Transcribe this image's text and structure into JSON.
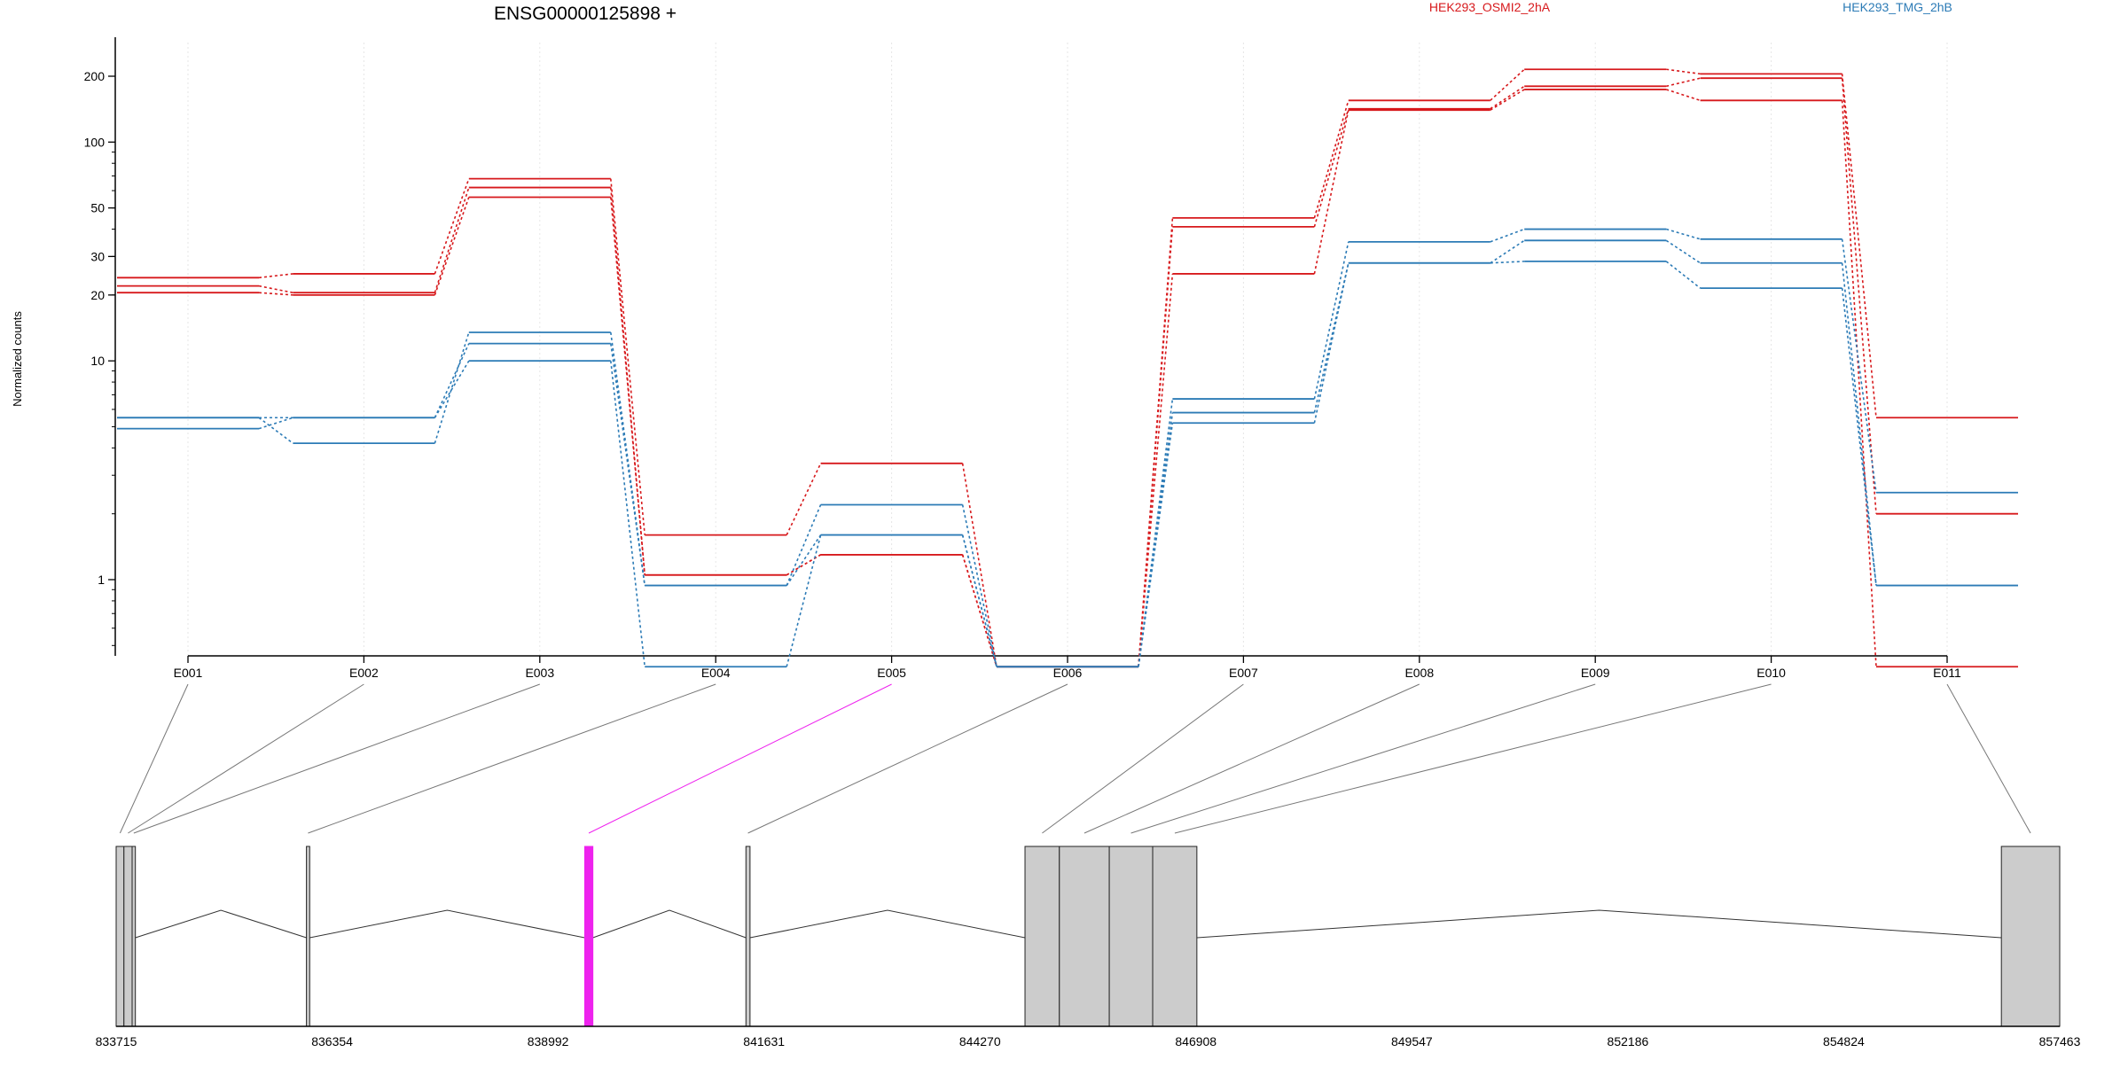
{
  "chart_data": {
    "type": "line",
    "title": "ENSG00000125898 +",
    "ylabel": "Normalized counts",
    "yscale": "log",
    "ylim": [
      0.4,
      250
    ],
    "yticks": [
      "1",
      "10",
      "20",
      "30",
      "50",
      "100",
      "200"
    ],
    "ytick_values": [
      1,
      10,
      20,
      30,
      50,
      100,
      200
    ],
    "grid": "vertical dotted at exon centers",
    "categories": [
      "E001",
      "E002",
      "E003",
      "E004",
      "E005",
      "E006",
      "E007",
      "E008",
      "E009",
      "E010",
      "E011"
    ],
    "legend": [
      {
        "name": "HEK293_OSMI2_2hA",
        "color": "#d7191c"
      },
      {
        "name": "HEK293_TMG_2hB",
        "color": "#2c7bb6"
      }
    ],
    "series": [
      {
        "group": "HEK293_OSMI2_2hA",
        "color": "#d7191c",
        "values": [
          24,
          25,
          68,
          1.6,
          3.4,
          0.4,
          45,
          155,
          215,
          205,
          5.5
        ]
      },
      {
        "group": "HEK293_OSMI2_2hA",
        "color": "#d7191c",
        "values": [
          22,
          20.5,
          62,
          1.05,
          1.3,
          0.4,
          41,
          142,
          180,
          196,
          2.0
        ]
      },
      {
        "group": "HEK293_OSMI2_2hA",
        "color": "#d7191c",
        "values": [
          20.5,
          20,
          56,
          1.05,
          1.3,
          0.4,
          25,
          140,
          174,
          155,
          0.4
        ]
      },
      {
        "group": "HEK293_TMG_2hB",
        "color": "#2c7bb6",
        "values": [
          5.5,
          4.2,
          13.5,
          0.94,
          2.2,
          0.4,
          6.7,
          35,
          40,
          36,
          2.5
        ]
      },
      {
        "group": "HEK293_TMG_2hB",
        "color": "#2c7bb6",
        "values": [
          5.5,
          5.5,
          12,
          0.94,
          1.6,
          0.4,
          5.8,
          28,
          35.5,
          28,
          0.94
        ]
      },
      {
        "group": "HEK293_TMG_2hB",
        "color": "#2c7bb6",
        "values": [
          4.9,
          5.5,
          10,
          0.4,
          1.6,
          0.4,
          5.2,
          28,
          28.5,
          21.5,
          0.94
        ]
      }
    ],
    "genome": {
      "start": 833715,
      "end": 857463,
      "ticks": [
        "833715",
        "836354",
        "838992",
        "841631",
        "844270",
        "846908",
        "849547",
        "852186",
        "854824",
        "857463"
      ],
      "tick_values": [
        833715,
        836354,
        838992,
        841631,
        844270,
        846908,
        849547,
        852186,
        854824,
        857463
      ],
      "highlight_exon": "E005",
      "highlight_color": "#ee22ee",
      "exon_color": "#cccccc"
    }
  }
}
